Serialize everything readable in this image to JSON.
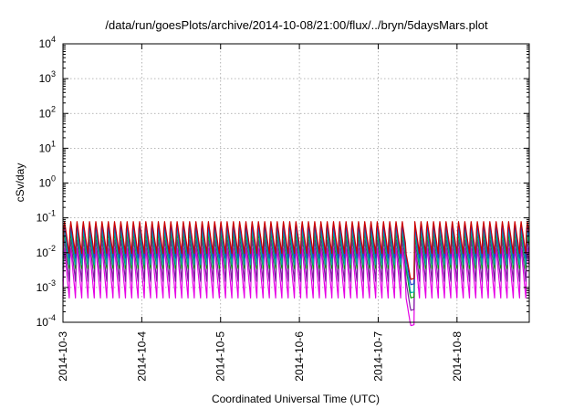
{
  "chart_data": {
    "type": "line",
    "title": "/data/run/goesPlots/archive/2014-10-08/21:00/flux/../bryn/5daysMars.plot",
    "xlabel": "Coordinated Universal Time (UTC)",
    "ylabel": "cSv/day",
    "yscale": "log",
    "ylim": [
      0.0001,
      10000
    ],
    "xlim": [
      "2014-10-03",
      "2014-10-08 22:00"
    ],
    "grid": true,
    "x_ticks": [
      "2014-10-3",
      "2014-10-4",
      "2014-10-5",
      "2014-10-6",
      "2014-10-7",
      "2014-10-8"
    ],
    "y_ticks": [
      {
        "value": 0.0001,
        "base": "10",
        "exp": "-4"
      },
      {
        "value": 0.001,
        "base": "10",
        "exp": "-3"
      },
      {
        "value": 0.01,
        "base": "10",
        "exp": "-2"
      },
      {
        "value": 0.1,
        "base": "10",
        "exp": "-1"
      },
      {
        "value": 1,
        "base": "10",
        "exp": "0"
      },
      {
        "value": 10,
        "base": "10",
        "exp": "1"
      },
      {
        "value": 100,
        "base": "10",
        "exp": "2"
      },
      {
        "value": 1000,
        "base": "10",
        "exp": "3"
      },
      {
        "value": 10000,
        "base": "10",
        "exp": "4"
      }
    ],
    "pattern": {
      "cycles_per_day": 12.6,
      "gap_start": "2014-10-07 08:30",
      "gap_end": "2014-10-07 11:00"
    },
    "series": [
      {
        "color": "#cc0000",
        "peak": 0.095,
        "trough": 0.0095,
        "gap_floor": 0.0017
      },
      {
        "color": "#1f3fcc",
        "peak": 0.075,
        "trough": 0.007,
        "gap_floor": 0.0012
      },
      {
        "color": "#00aaaa",
        "peak": 0.055,
        "trough": 0.0045,
        "gap_floor": 0.0007
      },
      {
        "color": "#00a000",
        "peak": 0.045,
        "trough": 0.0035,
        "gap_floor": 0.0005
      },
      {
        "color": "#7a1fa0",
        "peak": 0.03,
        "trough": 0.0015,
        "gap_floor": 0.00022
      },
      {
        "color": "#e600e6",
        "peak": 0.018,
        "trough": 0.0005,
        "gap_floor": 8e-05
      }
    ]
  }
}
